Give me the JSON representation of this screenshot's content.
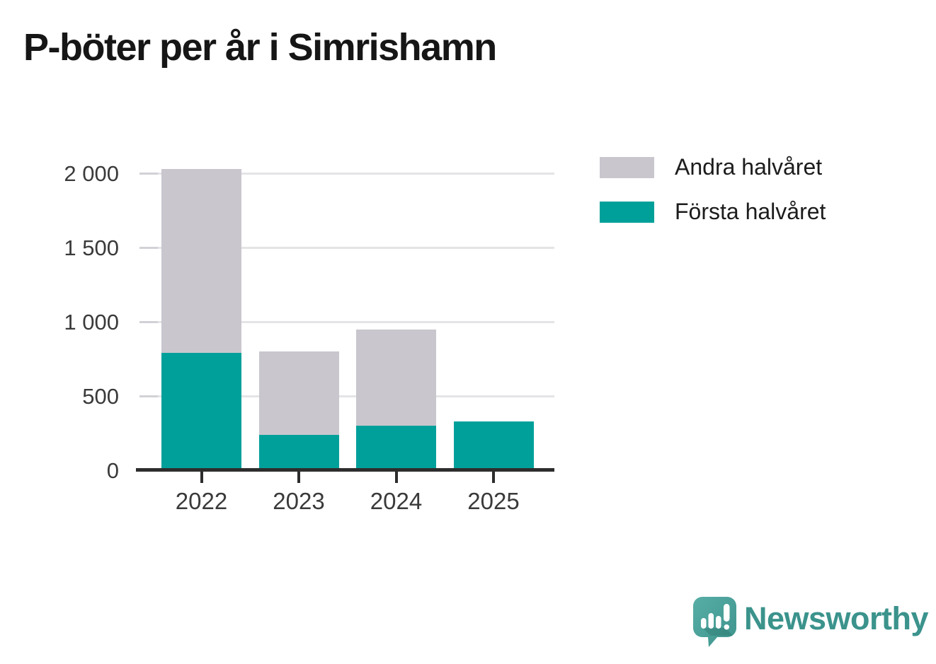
{
  "title": "P-böter per år i Simrishamn",
  "legend": [
    {
      "label": "Andra halvåret",
      "color": "#c9c6ce"
    },
    {
      "label": "Första halvåret",
      "color": "#00a09a"
    }
  ],
  "chart_data": {
    "type": "bar",
    "stacked": true,
    "title": "P-böter per år i Simrishamn",
    "categories": [
      "2022",
      "2023",
      "2024",
      "2025"
    ],
    "series": [
      {
        "name": "Första halvåret",
        "color": "#00a09a",
        "values": [
          790,
          240,
          300,
          330
        ]
      },
      {
        "name": "Andra halvåret",
        "color": "#c9c6ce",
        "values": [
          1240,
          560,
          650,
          0
        ]
      }
    ],
    "totals": [
      2030,
      800,
      950,
      330
    ],
    "xlabel": "",
    "ylabel": "",
    "ylim": [
      0,
      2000
    ],
    "yticks": [
      0,
      500,
      1000,
      1500,
      2000
    ],
    "ytick_labels": [
      "0",
      "500",
      "1 000",
      "1 500",
      "2 000"
    ],
    "grid": true,
    "legend_position": "top-right",
    "colors": {
      "axis": "#2d2d2d",
      "gridline": "#e4e3e6",
      "tick_label": "#3a3a3a",
      "first_half": "#00a09a",
      "second_half": "#c9c6ce"
    }
  },
  "branding": {
    "logo_text": "Newsworthy",
    "logo_color": "#3b938c",
    "logo_icon": "newsworthy-speech-bubble-chart-icon"
  }
}
